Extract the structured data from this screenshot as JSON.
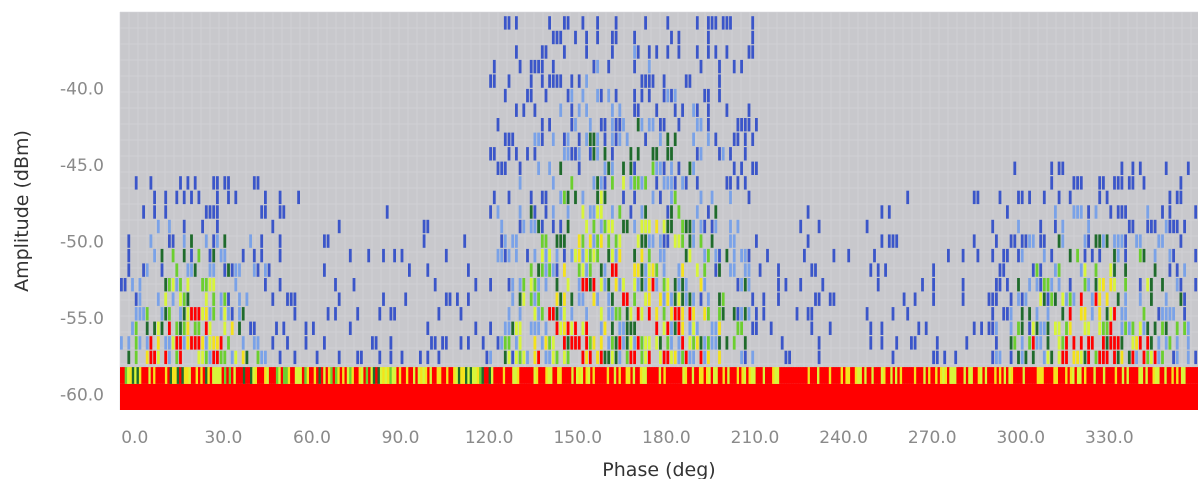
{
  "chart_data": {
    "type": "heatmap",
    "title": "",
    "xlabel": "Phase (deg)",
    "ylabel": "Amplitude (dBm)",
    "x_ticks": [
      "0.0",
      "30.0",
      "60.0",
      "90.0",
      "120.0",
      "150.0",
      "180.0",
      "210.0",
      "240.0",
      "270.0",
      "300.0",
      "330.0"
    ],
    "y_ticks": [
      "-40.0",
      "-45.0",
      "-50.0",
      "-55.0",
      "-60.0"
    ],
    "xlim": [
      -5,
      360
    ],
    "ylim": [
      -61,
      -35
    ],
    "grid": true,
    "legend": "none",
    "background_color": "#c8c8cc",
    "color_scale": [
      "#3b56c9",
      "#7aa2e8",
      "#1f6b2c",
      "#6ccf2f",
      "#d8f53a",
      "#f5e21c",
      "#ff0000"
    ],
    "floor_level_dbm": -60,
    "dense_clusters": [
      {
        "phase_range": [
          120,
          210
        ],
        "amplitude_range": [
          -58,
          -35
        ]
      },
      {
        "phase_range": [
          290,
          360
        ],
        "amplitude_range": [
          -58,
          -45
        ]
      },
      {
        "phase_range": [
          -5,
          45
        ],
        "amplitude_range": [
          -58,
          -46
        ]
      }
    ]
  }
}
